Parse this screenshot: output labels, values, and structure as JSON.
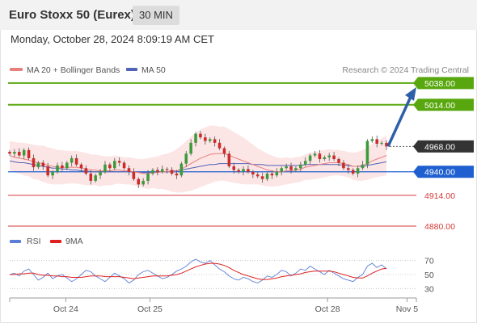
{
  "header": {
    "title": "Euro Stoxx 50 (Eurex)",
    "interval": "30 MIN"
  },
  "datetime": "Monday, October 28, 2024 8:09:19 AM CET",
  "legend": {
    "ma20": "MA 20 + Bollinger Bands",
    "ma50": "MA 50",
    "source": "Research © 2024 Trading Central"
  },
  "colors": {
    "resistance": "#59a70f",
    "support": "#1f5fd0",
    "support_line": "#d63a3a",
    "ma20": "#e87f7f",
    "ma50": "#5063b8",
    "band_fill": "#fbe0e0",
    "candle_up": "#3b9b3b",
    "candle_down": "#cc2a2a",
    "arrow": "#2e5fa8",
    "last_price": "#333333",
    "rsi": "#5b7fd6",
    "rsi_ma": "#e02020"
  },
  "chart_data": {
    "type": "candlestick",
    "price_axis": [
      4880,
      5045
    ],
    "levels": [
      {
        "label": "5038.00",
        "value": 5038,
        "kind": "resistance"
      },
      {
        "label": "5014.00",
        "value": 5014,
        "kind": "resistance"
      },
      {
        "label": "4968.00",
        "value": 4968,
        "kind": "last"
      },
      {
        "label": "4940.00",
        "value": 4940,
        "kind": "pivot"
      },
      {
        "label": "4914.00",
        "value": 4914,
        "kind": "support"
      },
      {
        "label": "4880.00",
        "value": 4880,
        "kind": "support"
      }
    ],
    "forecast_arrow": {
      "from": 4968,
      "to": 5030
    },
    "closes": [
      4960,
      4962,
      4958,
      4964,
      4955,
      4945,
      4950,
      4946,
      4936,
      4940,
      4947,
      4944,
      4950,
      4955,
      4948,
      4944,
      4938,
      4930,
      4936,
      4940,
      4948,
      4944,
      4952,
      4950,
      4944,
      4940,
      4932,
      4926,
      4930,
      4938,
      4942,
      4940,
      4943,
      4942,
      4938,
      4936,
      4949,
      4960,
      4972,
      4982,
      4978,
      4974,
      4976,
      4972,
      4966,
      4960,
      4946,
      4942,
      4940,
      4943,
      4940,
      4937,
      4935,
      4932,
      4938,
      4936,
      4940,
      4944,
      4946,
      4942,
      4944,
      4948,
      4952,
      4958,
      4960,
      4954,
      4956,
      4958,
      4954,
      4950,
      4944,
      4942,
      4938,
      4944,
      4948,
      4974,
      4976,
      4971,
      4972,
      4968
    ],
    "ma20": [
      4958,
      4956,
      4955,
      4954,
      4953,
      4951,
      4950,
      4949,
      4947,
      4946,
      4945,
      4945,
      4945,
      4945,
      4945,
      4944,
      4943,
      4942,
      4942,
      4941,
      4941,
      4941,
      4942,
      4942,
      4941,
      4941,
      4940,
      4939,
      4938,
      4938,
      4939,
      4939,
      4940,
      4940,
      4940,
      4941,
      4943,
      4946,
      4949,
      4952,
      4955,
      4957,
      4959,
      4960,
      4960,
      4960,
      4958,
      4956,
      4954,
      4952,
      4950,
      4948,
      4946,
      4944,
      4942,
      4941,
      4940,
      4940,
      4941,
      4941,
      4942,
      4943,
      4945,
      4946,
      4947,
      4948,
      4949,
      4950,
      4950,
      4950,
      4949,
      4948,
      4946,
      4946,
      4947,
      4949,
      4952,
      4954,
      4956,
      4958
    ],
    "ma50": [
      4952,
      4951,
      4950,
      4950,
      4949,
      4948,
      4947,
      4946,
      4945,
      4944,
      4944,
      4943,
      4943,
      4942,
      4942,
      4941,
      4941,
      4940,
      4940,
      4940,
      4940,
      4940,
      4940,
      4940,
      4940,
      4940,
      4940,
      4940,
      4939,
      4939,
      4939,
      4940,
      4940,
      4940,
      4941,
      4941,
      4942,
      4943,
      4944,
      4945,
      4946,
      4947,
      4948,
      4948,
      4949,
      4949,
      4949,
      4949,
      4949,
      4949,
      4949,
      4948,
      4948,
      4948,
      4947,
      4947,
      4947,
      4947,
      4947,
      4947,
      4947,
      4947,
      4948,
      4948,
      4948,
      4948,
      4948,
      4948,
      4948,
      4948,
      4947,
      4947,
      4946,
      4946,
      4946,
      4947,
      4948,
      4949,
      4950,
      4951
    ],
    "band_width": [
      16,
      17,
      17,
      18,
      18,
      19,
      19,
      20,
      20,
      20,
      19,
      19,
      18,
      18,
      18,
      18,
      18,
      17,
      17,
      17,
      16,
      16,
      16,
      15,
      15,
      15,
      15,
      15,
      16,
      17,
      17,
      18,
      19,
      20,
      22,
      24,
      26,
      28,
      30,
      31,
      32,
      32,
      32,
      31,
      30,
      30,
      29,
      28,
      27,
      26,
      24,
      22,
      20,
      19,
      18,
      17,
      16,
      15,
      15,
      14,
      14,
      14,
      14,
      15,
      15,
      15,
      15,
      15,
      14,
      14,
      14,
      14,
      15,
      16,
      17,
      18,
      19,
      20,
      21,
      22
    ],
    "rsi": {
      "label": "RSI",
      "ma_label": "9MA",
      "ticks": [
        "70",
        "50",
        "30"
      ],
      "range": [
        20,
        80
      ],
      "values": [
        50,
        52,
        48,
        55,
        58,
        50,
        42,
        46,
        52,
        44,
        48,
        50,
        45,
        40,
        44,
        50,
        56,
        54,
        48,
        44,
        40,
        46,
        52,
        48,
        44,
        38,
        42,
        50,
        54,
        56,
        52,
        48,
        44,
        46,
        50,
        55,
        58,
        62,
        68,
        72,
        68,
        66,
        70,
        64,
        58,
        54,
        48,
        44,
        42,
        46,
        44,
        40,
        38,
        42,
        48,
        46,
        50,
        56,
        54,
        48,
        52,
        58,
        56,
        62,
        58,
        54,
        50,
        56,
        52,
        48,
        44,
        42,
        40,
        46,
        50,
        62,
        66,
        60,
        64,
        58
      ],
      "ma_values": [
        50,
        50,
        51,
        51,
        52,
        52,
        50,
        49,
        49,
        48,
        48,
        47,
        47,
        46,
        46,
        46,
        47,
        48,
        48,
        48,
        47,
        47,
        47,
        47,
        46,
        45,
        44,
        45,
        46,
        47,
        48,
        48,
        48,
        48,
        49,
        50,
        52,
        55,
        58,
        61,
        63,
        65,
        66,
        66,
        65,
        63,
        60,
        56,
        53,
        50,
        48,
        46,
        44,
        43,
        43,
        44,
        45,
        47,
        48,
        49,
        50,
        51,
        53,
        54,
        55,
        55,
        55,
        55,
        54,
        52,
        50,
        48,
        46,
        45,
        45,
        48,
        52,
        55,
        58,
        59
      ]
    },
    "x_labels": [
      {
        "label": "Oct 24",
        "index": 12
      },
      {
        "label": "Oct 25",
        "index": 30
      },
      {
        "label": "Oct 28",
        "index": 68
      },
      {
        "label": "Nov 5",
        "index": 85
      }
    ],
    "x_count": 88
  }
}
